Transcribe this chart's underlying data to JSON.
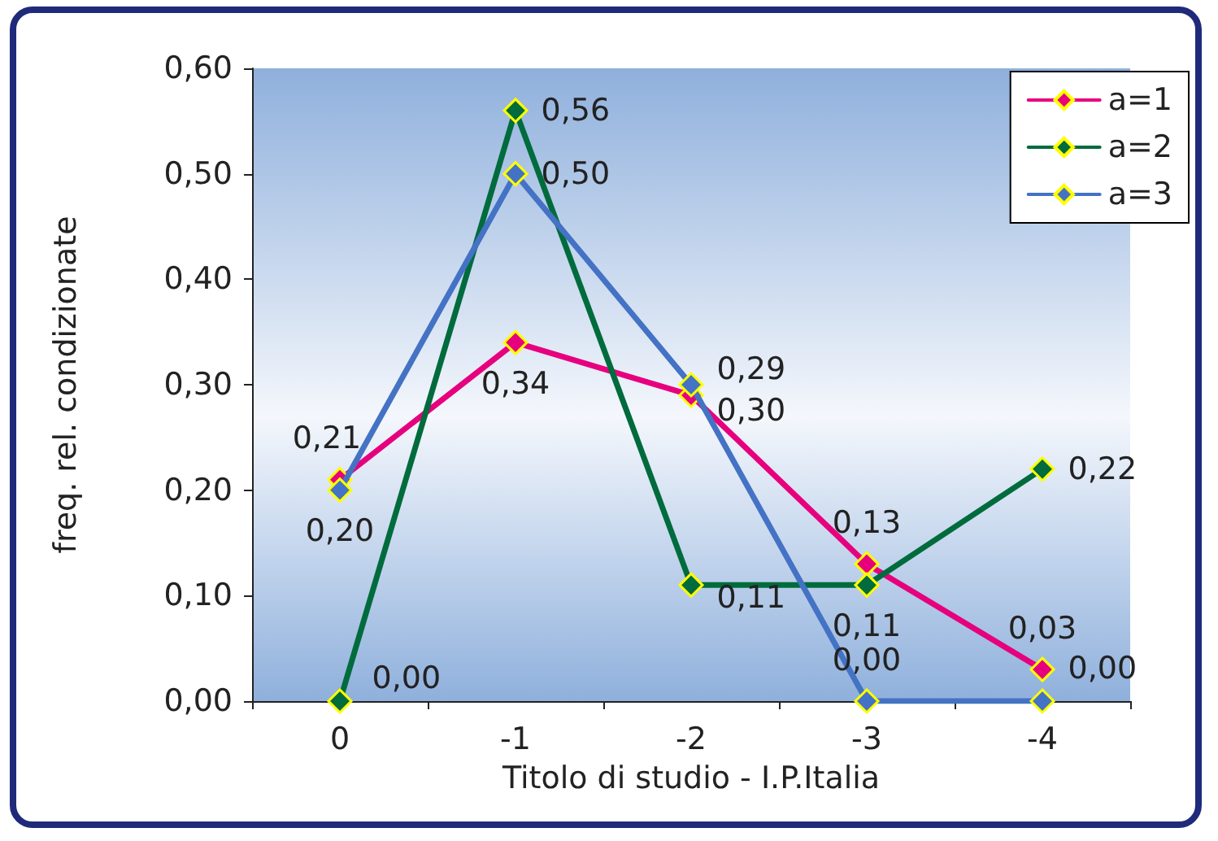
{
  "chart_data": {
    "type": "line",
    "xlabel": "Titolo di studio - I.P.Italia",
    "ylabel": "freq. rel. condizionate",
    "categories": [
      "0",
      "-1",
      "-2",
      "-3",
      "-4"
    ],
    "series": [
      {
        "name": "a=1",
        "color": "#e6007e",
        "values": [
          0.21,
          0.34,
          0.29,
          0.13,
          0.03
        ],
        "value_labels": [
          "0,21",
          "0,34",
          "0,29",
          "0,13",
          "0,03"
        ]
      },
      {
        "name": "a=2",
        "color": "#006b3c",
        "values": [
          0.0,
          0.56,
          0.11,
          0.11,
          0.22
        ],
        "value_labels": [
          "0,00",
          "0,56",
          "0,11",
          "0,11",
          "0,22"
        ]
      },
      {
        "name": "a=3",
        "color": "#4472c4",
        "values": [
          0.2,
          0.5,
          0.3,
          0.0,
          0.0
        ],
        "value_labels": [
          "0,20",
          "0,50",
          "0,30",
          "0,00",
          "0,00"
        ]
      }
    ],
    "ylim": [
      0,
      0.6
    ],
    "yticks": [
      {
        "value": 0,
        "label": "0,00"
      },
      {
        "value": 0.1,
        "label": "0,10"
      },
      {
        "value": 0.2,
        "label": "0,20"
      },
      {
        "value": 0.3,
        "label": "0,30"
      },
      {
        "value": 0.4,
        "label": "0,40"
      },
      {
        "value": 0.5,
        "label": "0,50"
      },
      {
        "value": 0.6,
        "label": "0,60"
      }
    ],
    "legend": "top right",
    "marker": "diamond",
    "line_style": "solid",
    "grid": false
  }
}
